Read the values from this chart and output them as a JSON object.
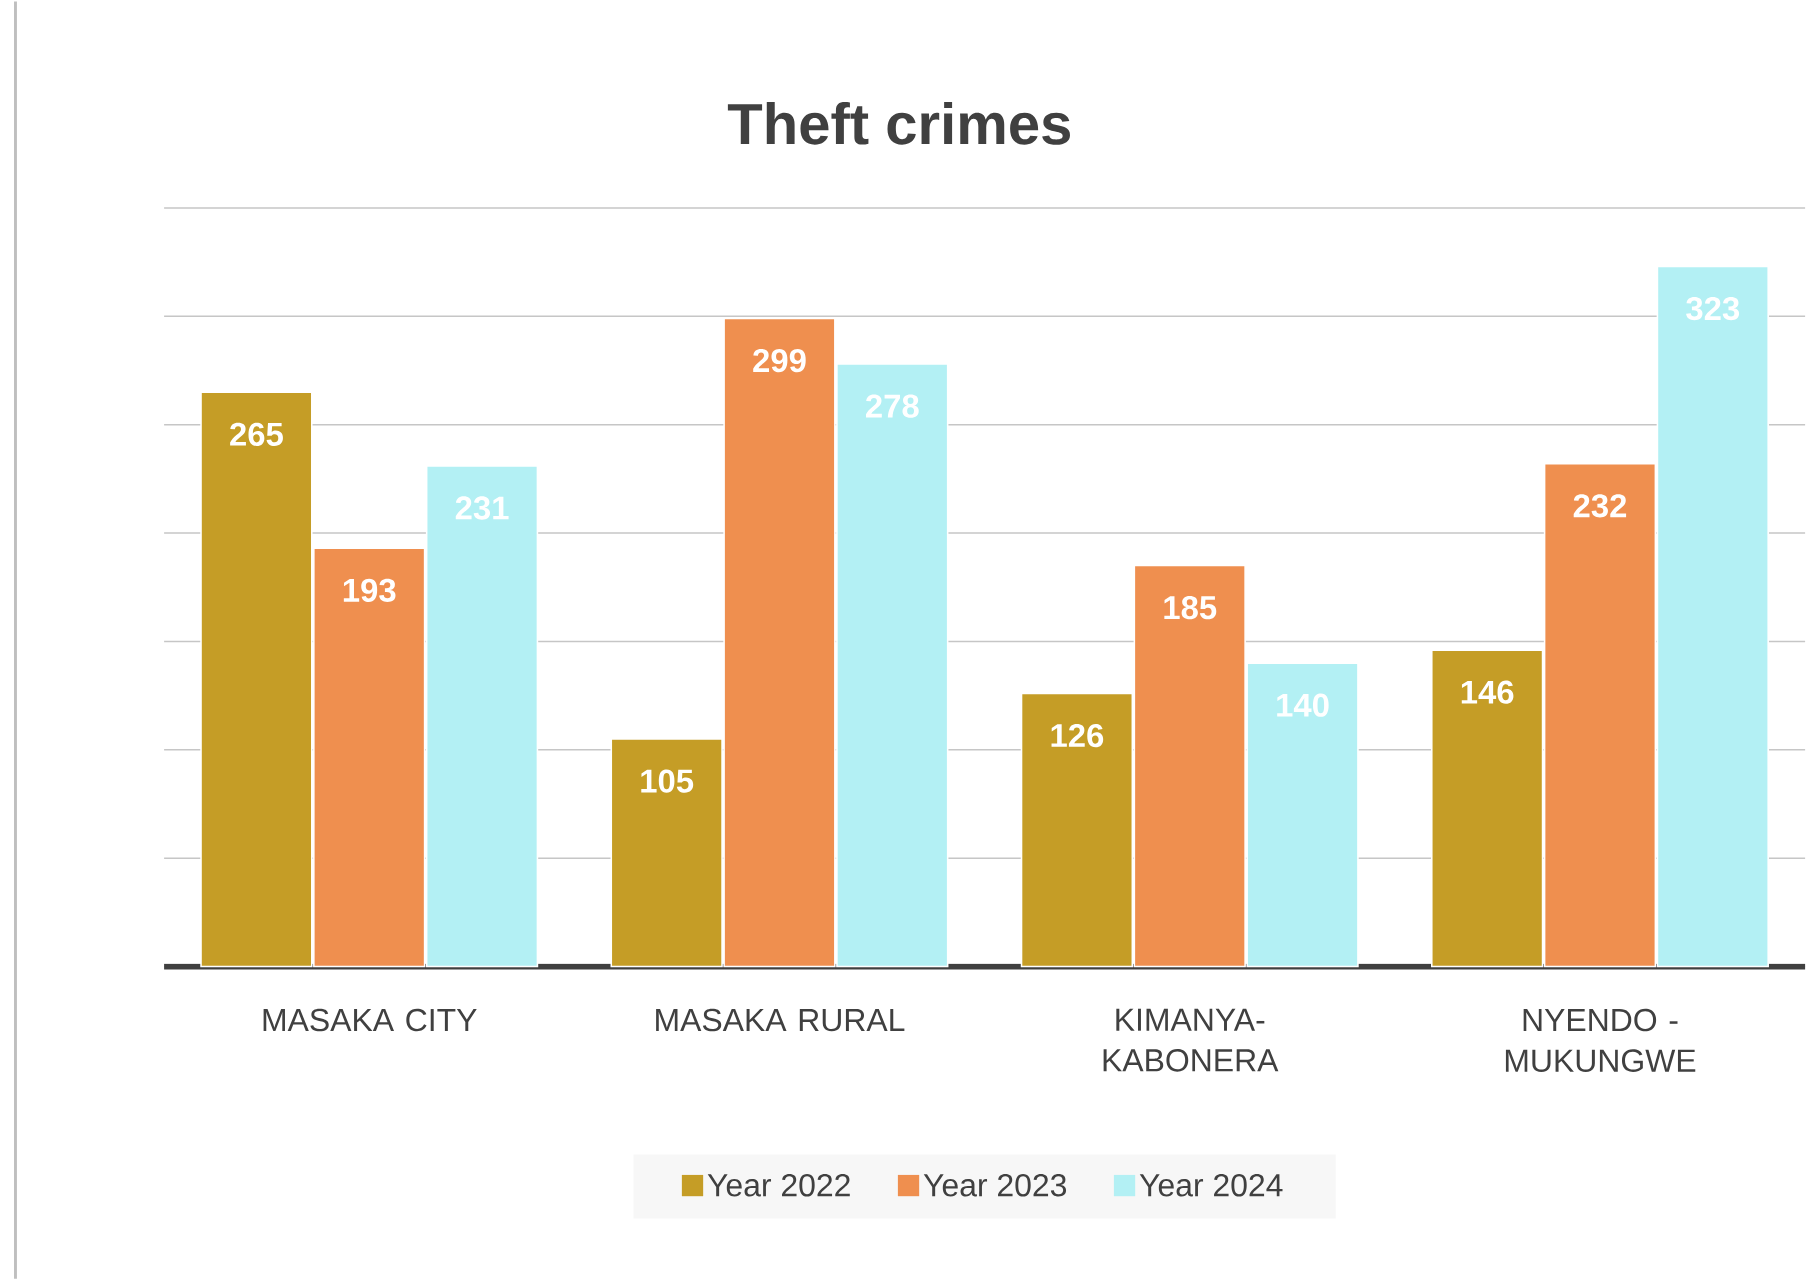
{
  "chart_data": {
    "type": "bar",
    "title": "Theft crimes",
    "categories": [
      "MASAKA CITY",
      "MASAKA RURAL",
      "KIMANYA-KABONERA",
      "NYENDO - MUKUNGWE"
    ],
    "series": [
      {
        "name": "Year  2022",
        "color": "#c59d26",
        "values": [
          265,
          105,
          126,
          146
        ]
      },
      {
        "name": "Year 2023",
        "color": "#ef8f4f",
        "values": [
          193,
          299,
          185,
          232
        ]
      },
      {
        "name": "Year 2024",
        "color": "#b3f0f4",
        "values": [
          231,
          278,
          140,
          323
        ]
      }
    ],
    "ylim": [
      0,
      350
    ],
    "yticks": [
      {
        "value": 0,
        "label": null
      },
      {
        "value": 50,
        "label": null
      },
      {
        "value": 100,
        "label": null
      },
      {
        "value": 150,
        "label": null
      },
      {
        "value": 200,
        "label": null
      },
      {
        "value": 250,
        "label": null
      },
      {
        "value": 300,
        "label": null
      },
      {
        "value": 350,
        "label": null
      }
    ],
    "tick_labels": "x",
    "grid": "y",
    "legend": "bottom",
    "data_labels": true
  }
}
